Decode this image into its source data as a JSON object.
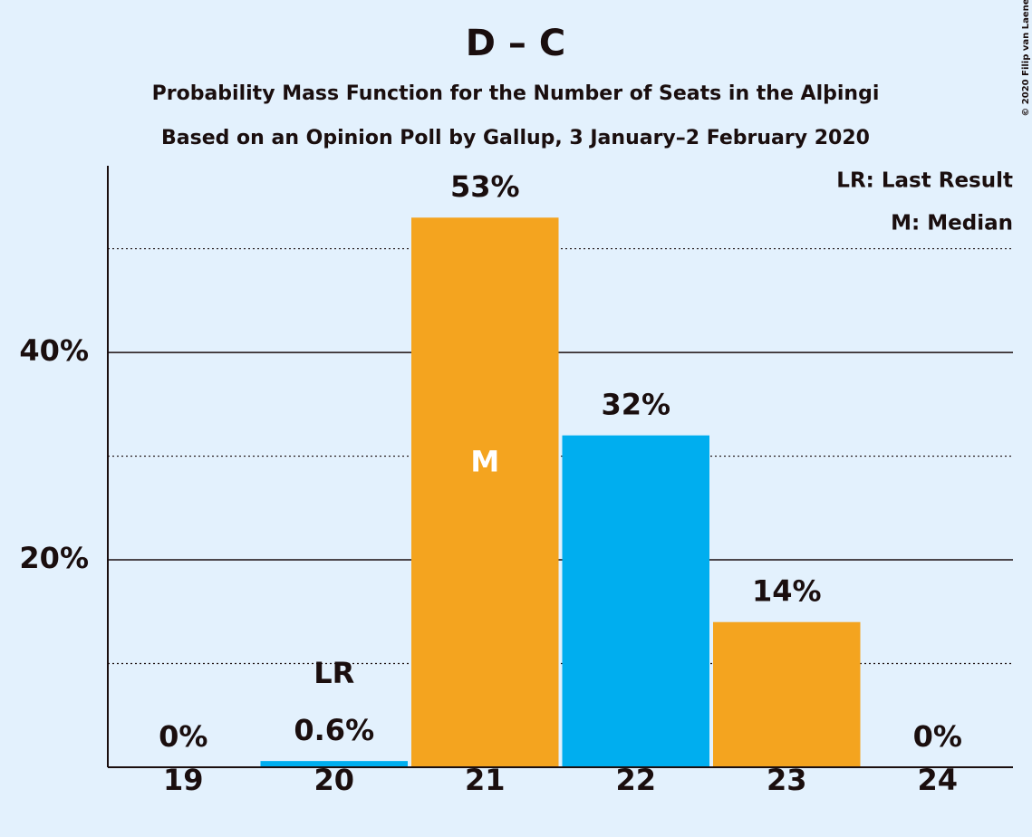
{
  "chart_data": {
    "type": "bar",
    "title": "D – C",
    "subtitle": "Probability Mass Function for the Number of Seats in the Alþingi",
    "subtitle2": "Based on an Opinion Poll by Gallup, 3 January–2 February 2020",
    "copyright": "© 2020 Filip van Laenen",
    "legend": [
      "LR: Last Result",
      "M: Median"
    ],
    "categories": [
      "19",
      "20",
      "21",
      "22",
      "23",
      "24"
    ],
    "values": [
      0,
      0.6,
      53,
      32,
      14,
      0
    ],
    "value_labels": [
      "0%",
      "0.6%",
      "53%",
      "32%",
      "14%",
      "0%"
    ],
    "colors": [
      "#f4a41f",
      "#00aeef",
      "#f4a41f",
      "#00aeef",
      "#f4a41f",
      "#00aeef"
    ],
    "above_labels": [
      null,
      "LR",
      null,
      null,
      null,
      null
    ],
    "inside_labels": [
      null,
      null,
      "M",
      null,
      null,
      null
    ],
    "ylim": [
      0,
      58
    ],
    "yticks": [
      {
        "value": 20,
        "label": "20%"
      },
      {
        "value": 40,
        "label": "40%"
      }
    ],
    "minor_yticks": [
      10,
      30,
      50
    ],
    "grid": true
  }
}
